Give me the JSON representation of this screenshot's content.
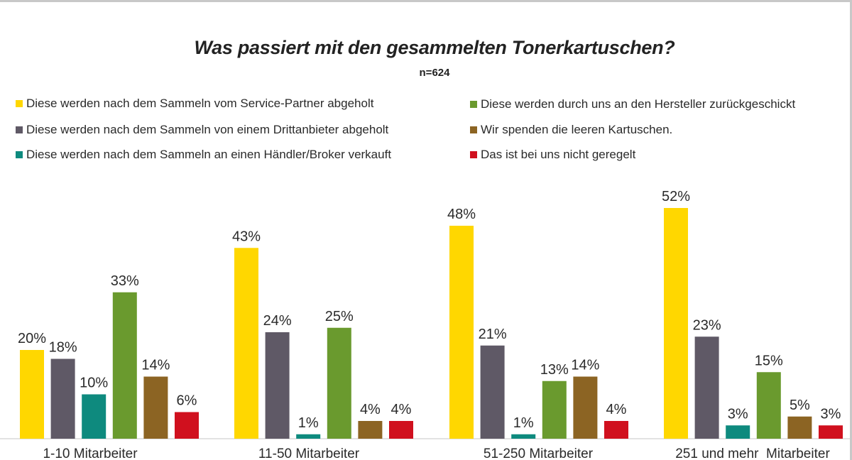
{
  "chart_data": {
    "type": "bar",
    "title": "Was passiert mit den gesammelten Tonerkartuschen?",
    "subtitle": "n=624",
    "categories": [
      "1-10 Mitarbeiter",
      "11-50 Mitarbeiter",
      "51-250 Mitarbeiter",
      "251 und mehr  Mitarbeiter"
    ],
    "series": [
      {
        "name": "Diese werden nach dem Sammeln vom Service-Partner abgeholt",
        "color": "#FFD700",
        "values": [
          20,
          43,
          48,
          52
        ]
      },
      {
        "name": "Diese werden nach dem Sammeln von einem Drittanbieter abgeholt",
        "color": "#5F5966",
        "values": [
          18,
          24,
          21,
          23
        ]
      },
      {
        "name": "Diese werden nach dem Sammeln an einen Händler/Broker verkauft",
        "color": "#0E8A7E",
        "values": [
          10,
          1,
          1,
          3
        ]
      },
      {
        "name": "Diese werden durch uns an den Hersteller zurückgeschickt",
        "color": "#6A9A2E",
        "values": [
          33,
          25,
          13,
          15
        ]
      },
      {
        "name": "Wir spenden die leeren Kartuschen.",
        "color": "#8C6423",
        "values": [
          14,
          4,
          14,
          5
        ]
      },
      {
        "name": "Das ist bei uns nicht geregelt",
        "color": "#D0101E",
        "values": [
          6,
          4,
          4,
          3
        ]
      }
    ],
    "value_suffix": "%",
    "ylim": [
      0,
      55
    ],
    "grid": false,
    "legend_position": "top"
  }
}
